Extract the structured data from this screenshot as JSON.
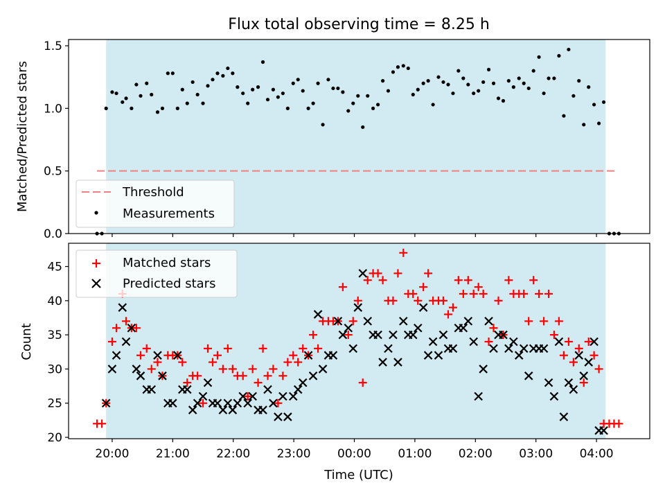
{
  "title": "Flux total observing time = 8.25 h",
  "colors": {
    "shade": "#add8e6",
    "threshold": "#f08080",
    "measurement": "#000000",
    "matched": "#ff0000",
    "predicted": "#000000"
  },
  "chart_data": [
    {
      "type": "scatter",
      "ylabel": "Matched/Predicted stars",
      "ylim": [
        0,
        1.55
      ],
      "yticks": [
        0.0,
        0.5,
        1.0,
        1.5
      ],
      "ytick_labels": [
        "0.0",
        "0.5",
        "1.0",
        "1.5"
      ],
      "xlim": [
        -0.72,
        8.88
      ],
      "xticks": [
        0,
        1,
        2,
        3,
        4,
        5,
        6,
        7,
        8
      ],
      "shaded_span": [
        -0.1,
        8.15
      ],
      "threshold": {
        "y": 0.5,
        "x_range": [
          -0.25,
          8.35
        ],
        "label": "Threshold"
      },
      "legend_position": "lower-left",
      "series": [
        {
          "name": "Measurements",
          "marker": "dot",
          "x": [
            -0.25,
            -0.17,
            -0.1,
            0.0,
            0.07,
            0.17,
            0.23,
            0.32,
            0.4,
            0.47,
            0.57,
            0.65,
            0.75,
            0.83,
            0.92,
            1.0,
            1.08,
            1.16,
            1.24,
            1.33,
            1.41,
            1.5,
            1.58,
            1.66,
            1.74,
            1.83,
            1.91,
            1.99,
            2.07,
            2.16,
            2.24,
            2.32,
            2.41,
            2.49,
            2.57,
            2.66,
            2.74,
            2.82,
            2.9,
            2.99,
            3.07,
            3.15,
            3.24,
            3.32,
            3.4,
            3.48,
            3.57,
            3.65,
            3.73,
            3.81,
            3.9,
            3.98,
            4.06,
            4.14,
            4.22,
            4.31,
            4.39,
            4.47,
            4.56,
            4.64,
            4.72,
            4.81,
            4.89,
            4.97,
            5.05,
            5.14,
            5.22,
            5.3,
            5.39,
            5.47,
            5.55,
            5.63,
            5.72,
            5.8,
            5.88,
            5.97,
            6.05,
            6.13,
            6.22,
            6.3,
            6.38,
            6.46,
            6.55,
            6.63,
            6.72,
            6.8,
            6.88,
            6.96,
            7.05,
            7.13,
            7.21,
            7.3,
            7.38,
            7.46,
            7.54,
            7.62,
            7.71,
            7.79,
            7.87,
            7.96,
            8.04,
            8.12,
            8.21,
            8.29,
            8.37
          ],
          "y": [
            0.0,
            0.0,
            1.0,
            1.13,
            1.12,
            1.05,
            1.08,
            1.0,
            1.19,
            1.1,
            1.2,
            1.11,
            0.97,
            1.0,
            1.28,
            1.28,
            1.0,
            1.15,
            1.04,
            1.21,
            1.11,
            1.04,
            1.18,
            1.23,
            1.28,
            1.26,
            1.32,
            1.28,
            1.17,
            1.12,
            1.04,
            1.15,
            1.17,
            1.37,
            1.07,
            1.15,
            1.09,
            1.12,
            1.0,
            1.2,
            1.23,
            1.14,
            1.0,
            1.04,
            1.2,
            0.87,
            1.23,
            1.16,
            1.16,
            1.13,
            0.98,
            1.04,
            1.1,
            0.85,
            1.1,
            1.0,
            1.03,
            1.22,
            1.14,
            1.29,
            1.33,
            1.34,
            1.32,
            1.11,
            1.15,
            1.2,
            1.22,
            1.03,
            1.25,
            1.21,
            1.19,
            1.12,
            1.3,
            1.24,
            1.19,
            1.12,
            1.14,
            1.21,
            1.31,
            1.2,
            1.08,
            1.06,
            1.22,
            1.17,
            1.24,
            1.2,
            1.16,
            1.3,
            1.41,
            1.12,
            1.24,
            1.24,
            1.42,
            0.94,
            1.47,
            1.1,
            1.22,
            0.87,
            1.17,
            1.03,
            0.88,
            1.05,
            0.0,
            0.0,
            0.0
          ]
        }
      ]
    },
    {
      "type": "scatter",
      "xlabel": "Time (UTC)",
      "ylabel": "Count",
      "ylim": [
        19.8,
        48.4
      ],
      "yticks": [
        20,
        25,
        30,
        35,
        40,
        45
      ],
      "ytick_labels": [
        "20",
        "25",
        "30",
        "35",
        "40",
        "45"
      ],
      "xlim": [
        -0.72,
        8.88
      ],
      "xticks": [
        0,
        1,
        2,
        3,
        4,
        5,
        6,
        7,
        8
      ],
      "xtick_labels": [
        "20:00",
        "21:00",
        "22:00",
        "23:00",
        "00:00",
        "01:00",
        "02:00",
        "03:00",
        "04:00"
      ],
      "shaded_span": [
        -0.1,
        8.15
      ],
      "legend_position": "upper-left",
      "series": [
        {
          "name": "Matched stars",
          "marker": "plus",
          "x": [
            -0.25,
            -0.17,
            -0.1,
            0.0,
            0.07,
            0.17,
            0.23,
            0.32,
            0.4,
            0.47,
            0.57,
            0.65,
            0.75,
            0.83,
            0.92,
            1.0,
            1.08,
            1.16,
            1.24,
            1.33,
            1.41,
            1.5,
            1.58,
            1.66,
            1.74,
            1.83,
            1.91,
            1.99,
            2.07,
            2.16,
            2.24,
            2.32,
            2.41,
            2.49,
            2.57,
            2.66,
            2.74,
            2.82,
            2.9,
            2.99,
            3.07,
            3.15,
            3.24,
            3.32,
            3.4,
            3.48,
            3.57,
            3.65,
            3.73,
            3.81,
            3.9,
            3.98,
            4.06,
            4.14,
            4.22,
            4.31,
            4.39,
            4.47,
            4.56,
            4.64,
            4.72,
            4.81,
            4.89,
            4.97,
            5.05,
            5.14,
            5.22,
            5.3,
            5.39,
            5.47,
            5.55,
            5.63,
            5.72,
            5.8,
            5.88,
            5.97,
            6.05,
            6.13,
            6.22,
            6.3,
            6.38,
            6.46,
            6.55,
            6.63,
            6.72,
            6.8,
            6.88,
            6.96,
            7.05,
            7.13,
            7.21,
            7.3,
            7.38,
            7.46,
            7.54,
            7.62,
            7.71,
            7.79,
            7.87,
            7.96,
            8.04,
            8.12,
            8.21,
            8.29,
            8.37
          ],
          "y": [
            22,
            22,
            25,
            34,
            36,
            41,
            37,
            36,
            36,
            32,
            33,
            30,
            31,
            29,
            32,
            32,
            32,
            31,
            28,
            29,
            29,
            25,
            33,
            31,
            32,
            30,
            33,
            30,
            29,
            29,
            26,
            30,
            28,
            33,
            29,
            30,
            25,
            29,
            31,
            32,
            31,
            33,
            32,
            35,
            33,
            37,
            37,
            37,
            37,
            42,
            35,
            37,
            40,
            28,
            43,
            44,
            44,
            43,
            40,
            40,
            44,
            47,
            41,
            41,
            40,
            42,
            44,
            40,
            40,
            40,
            38,
            39,
            43,
            41,
            43,
            41,
            42,
            41,
            34,
            36,
            40,
            35,
            43,
            41,
            41,
            41,
            37,
            43,
            41,
            37,
            41,
            35,
            37,
            32,
            34,
            31,
            33,
            28,
            34,
            32,
            30,
            22,
            22,
            22,
            22
          ]
        },
        {
          "name": "Predicted stars",
          "marker": "x",
          "x": [
            -0.1,
            0.0,
            0.07,
            0.17,
            0.23,
            0.32,
            0.4,
            0.47,
            0.57,
            0.65,
            0.75,
            0.83,
            0.92,
            1.0,
            1.08,
            1.16,
            1.24,
            1.33,
            1.41,
            1.5,
            1.58,
            1.66,
            1.74,
            1.83,
            1.91,
            1.99,
            2.07,
            2.16,
            2.24,
            2.32,
            2.41,
            2.49,
            2.57,
            2.66,
            2.74,
            2.82,
            2.9,
            2.99,
            3.07,
            3.15,
            3.24,
            3.32,
            3.4,
            3.48,
            3.57,
            3.65,
            3.73,
            3.81,
            3.9,
            3.98,
            4.06,
            4.14,
            4.22,
            4.31,
            4.39,
            4.47,
            4.56,
            4.64,
            4.72,
            4.81,
            4.89,
            4.97,
            5.05,
            5.14,
            5.22,
            5.3,
            5.39,
            5.47,
            5.55,
            5.63,
            5.72,
            5.8,
            5.88,
            5.97,
            6.05,
            6.13,
            6.22,
            6.3,
            6.38,
            6.46,
            6.55,
            6.63,
            6.72,
            6.8,
            6.88,
            6.96,
            7.05,
            7.13,
            7.21,
            7.3,
            7.38,
            7.46,
            7.54,
            7.62,
            7.71,
            7.79,
            7.87,
            7.96,
            8.04,
            8.12
          ],
          "y": [
            25,
            30,
            32,
            39,
            34,
            36,
            30,
            29,
            27,
            27,
            32,
            29,
            25,
            25,
            32,
            27,
            27,
            24,
            25,
            26,
            28,
            25,
            25,
            24,
            25,
            24,
            25,
            26,
            25,
            26,
            24,
            24,
            27,
            25,
            23,
            26,
            23,
            26,
            27,
            28,
            32,
            29,
            38,
            30,
            32,
            32,
            37,
            35,
            36,
            33,
            39,
            44,
            37,
            35,
            35,
            31,
            33,
            35,
            31,
            37,
            35,
            35,
            36,
            39,
            32,
            34,
            32,
            35,
            33,
            33,
            36,
            36,
            37,
            34,
            26,
            30,
            37,
            33,
            35,
            35,
            33,
            34,
            32,
            33,
            29,
            33,
            33,
            33,
            28,
            26,
            34,
            23,
            28,
            27,
            32,
            29,
            31,
            34,
            21,
            21
          ]
        }
      ]
    }
  ]
}
